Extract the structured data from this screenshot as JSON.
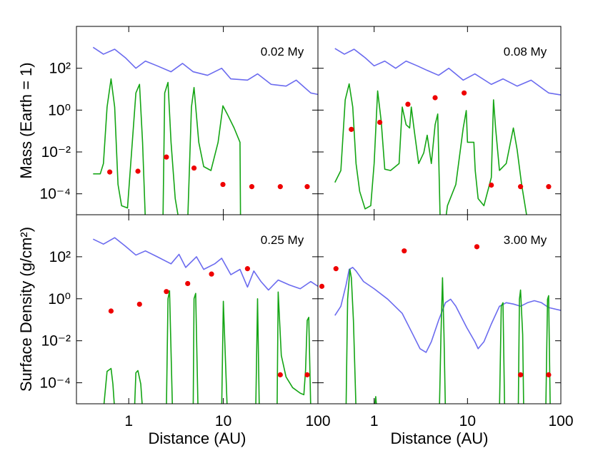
{
  "chart_data": [
    {
      "type": "line",
      "annotation": "0.02 My",
      "ylabel": "Mass (Earth = 1)",
      "log_x": true,
      "log_y": true,
      "xlim": [
        0.28,
        100
      ],
      "ylim": [
        1e-05,
        10000
      ],
      "xticks": [
        1,
        10,
        100
      ],
      "xticklabels": false,
      "yticklabels": true,
      "yticks": [
        {
          "value": 100,
          "label": "10²"
        },
        {
          "value": 1,
          "label": "10⁰"
        },
        {
          "value": 0.01,
          "label": "10⁻²"
        },
        {
          "value": 0.0001,
          "label": "10⁻⁴"
        }
      ],
      "series": [
        {
          "type": "line",
          "color": "#6b6bef",
          "x": [
            0.42,
            0.54,
            0.71,
            0.92,
            1.19,
            1.5,
            2.0,
            2.8,
            3.7,
            4.8,
            6.8,
            9.6,
            12,
            18,
            23,
            32,
            46,
            59,
            84,
            100
          ],
          "values": [
            1000,
            470,
            810,
            320,
            100,
            220,
            130,
            68,
            170,
            68,
            46,
            100,
            31,
            27,
            54,
            17,
            14,
            27,
            6.6,
            5.6
          ]
        },
        {
          "type": "line",
          "color": "#14a514",
          "x": [
            0.42,
            0.5,
            0.54,
            0.59,
            0.65,
            0.71,
            0.77,
            0.84,
            0.97,
            1.05,
            1.19,
            1.3,
            1.4,
            1.5,
            2.3,
            2.4,
            2.6,
            2.8,
            3.1,
            3.4,
            4.2,
            4.6,
            4.9,
            5.5,
            6.2,
            7.4,
            8.8,
            9.9,
            11,
            13,
            15,
            15.2
          ],
          "values": [
            0.0009,
            0.0009,
            0.0028,
            1.4,
            31,
            1.4,
            0.00028,
            2.7e-05,
            2.1e-05,
            0.0028,
            6.6,
            17,
            0.029,
            5e-06,
            5e-06,
            6.6,
            21,
            0.029,
            5.9e-05,
            5e-06,
            5e-06,
            1.4,
            12,
            0.029,
            0.002,
            0.0013,
            0.029,
            1.6,
            0.65,
            0.14,
            0.029,
            5e-06
          ]
        },
        {
          "type": "scatter",
          "color": "#ee0000",
          "x": [
            0.63,
            1.25,
            2.5,
            4.9,
            9.9,
            20,
            40,
            77
          ],
          "values": [
            0.0011,
            0.0012,
            0.0057,
            0.0017,
            0.00028,
            0.00022,
            0.00022,
            0.00022
          ]
        }
      ]
    },
    {
      "type": "line",
      "annotation": "0.08 My",
      "log_x": true,
      "log_y": true,
      "xlim": [
        0.25,
        100
      ],
      "ylim": [
        1e-05,
        10000
      ],
      "xticks": [
        1,
        10,
        100
      ],
      "xticklabels": false,
      "yticklabels": false,
      "yticks": [
        {
          "value": 100,
          "label": "10²"
        },
        {
          "value": 1,
          "label": "10⁰"
        },
        {
          "value": 0.01,
          "label": "10⁻²"
        },
        {
          "value": 0.0001,
          "label": "10⁻⁴"
        }
      ],
      "series": [
        {
          "type": "line",
          "color": "#6b6bef",
          "x": [
            0.38,
            0.48,
            0.61,
            0.8,
            1,
            1.3,
            1.7,
            2.2,
            2.9,
            3.7,
            4.9,
            6.3,
            9,
            12,
            18,
            24,
            34,
            48,
            74,
            100
          ],
          "values": [
            880,
            470,
            810,
            320,
            130,
            220,
            100,
            220,
            130,
            79,
            46,
            100,
            27,
            54,
            17,
            31,
            14,
            27,
            6.6,
            5.3
          ]
        },
        {
          "type": "line",
          "color": "#14a514",
          "x": [
            0.38,
            0.44,
            0.49,
            0.54,
            0.59,
            0.64,
            0.7,
            0.8,
            0.92,
            1,
            1.09,
            1.19,
            1.3,
            1.5,
            1.85,
            2.0,
            2.2,
            2.4,
            2.5,
            2.7,
            3.0,
            3.4,
            3.7,
            4.1,
            4.5,
            4.8,
            5.1,
            5.8,
            6.1,
            7.5,
            9,
            9.7,
            10,
            11.7,
            12.1,
            13,
            15,
            18,
            19,
            20,
            22,
            26,
            31,
            34,
            38,
            44
          ],
          "values": [
            0.00035,
            0.0013,
            3.1,
            18,
            1.4,
            0.0028,
            0.00013,
            1.9e-05,
            2.7e-05,
            0.0028,
            8.3,
            0.3,
            0.0015,
            0.0013,
            0.0028,
            1.4,
            0.2,
            0.14,
            1.4,
            0.093,
            0.0028,
            0.009,
            0.063,
            0.0028,
            0.2,
            0.65,
            5e-06,
            5e-06,
            2.7e-05,
            0.00028,
            0.14,
            0.95,
            0.029,
            0.029,
            0.0013,
            5.9e-05,
            2.7e-05,
            0.0006,
            3.1,
            0.14,
            0.0013,
            0.0028,
            0.14,
            0.013,
            0.00028,
            5e-06
          ]
        },
        {
          "type": "scatter",
          "color": "#ee0000",
          "x": [
            0.57,
            1.15,
            2.3,
            4.5,
            9.2,
            18,
            37,
            74
          ],
          "values": [
            0.12,
            0.26,
            1.9,
            3.9,
            6.6,
            0.00026,
            0.00022,
            0.00022
          ]
        }
      ]
    },
    {
      "type": "line",
      "annotation": "0.25 My",
      "ylabel": "Surface Density (g/cm²)",
      "xlabel": "Distance (AU)",
      "log_x": true,
      "log_y": true,
      "xlim": [
        0.28,
        100
      ],
      "ylim": [
        1e-05,
        10000
      ],
      "xticks": [
        1,
        10,
        100
      ],
      "xticklabels": true,
      "yticklabels": true,
      "yticks": [
        {
          "value": 100,
          "label": "10²"
        },
        {
          "value": 1,
          "label": "10⁰"
        },
        {
          "value": 0.01,
          "label": "10⁻²"
        },
        {
          "value": 0.0001,
          "label": "10⁻⁴"
        }
      ],
      "series": [
        {
          "type": "line",
          "color": "#6b6bef",
          "x": [
            0.42,
            0.54,
            0.71,
            0.92,
            1.19,
            1.5,
            2.0,
            2.8,
            3.4,
            4.0,
            5.2,
            6.2,
            8.1,
            9.6,
            12,
            15,
            18,
            21,
            25,
            30,
            38,
            50,
            65,
            84,
            100
          ],
          "values": [
            690,
            400,
            810,
            320,
            120,
            190,
            100,
            46,
            130,
            31,
            100,
            25,
            46,
            85,
            14,
            25,
            3.6,
            21,
            6.6,
            2.6,
            7.8,
            4.5,
            3.0,
            6.6,
            3.9
          ]
        },
        {
          "type": "line",
          "color": "#14a514",
          "x": [
            0.54,
            0.59,
            0.65,
            0.68,
            0.71,
            1.15,
            1.19,
            1.25,
            1.34,
            1.4,
            2.5,
            2.6,
            2.7,
            2.9,
            4.8,
            4.9,
            5.1,
            5.4,
            9.6,
            10,
            11,
            22,
            23,
            24,
            37,
            38,
            41,
            46,
            54,
            65,
            71,
            74,
            77,
            80,
            84
          ],
          "values": [
            5e-06,
            0.00035,
            0.00048,
            8.7e-05,
            5e-06,
            5e-06,
            0.0003,
            0.00038,
            8.7e-05,
            5e-06,
            5e-06,
            1.0,
            2.4,
            5e-06,
            5e-06,
            1.0,
            1.8,
            5e-06,
            5e-06,
            0.76,
            5e-06,
            5e-06,
            1.0,
            5e-06,
            5e-06,
            2.1,
            0.002,
            0.00019,
            5.9e-05,
            3.2e-05,
            2.7e-05,
            0.00041,
            0.093,
            0.13,
            5e-06
          ]
        },
        {
          "type": "scatter",
          "color": "#ee0000",
          "x": [
            0.65,
            1.3,
            2.5,
            4.2,
            7.5,
            18,
            40,
            77,
            110
          ],
          "values": [
            0.26,
            0.55,
            2.2,
            5.3,
            15,
            27,
            0.00024,
            0.00024,
            3.9
          ]
        }
      ]
    },
    {
      "type": "line",
      "annotation": "3.00 My",
      "xlabel": "Distance (AU)",
      "log_x": true,
      "log_y": true,
      "xlim": [
        0.25,
        100
      ],
      "ylim": [
        1e-05,
        10000
      ],
      "xticks": [
        1,
        10,
        100
      ],
      "xticklabels": true,
      "yticklabels": false,
      "yticks": [
        {
          "value": 100,
          "label": "10²"
        },
        {
          "value": 1,
          "label": "10⁰"
        },
        {
          "value": 0.01,
          "label": "10⁻²"
        },
        {
          "value": 0.0001,
          "label": "10⁻⁴"
        }
      ],
      "series": [
        {
          "type": "line",
          "color": "#6b6bef",
          "x": [
            0.38,
            0.44,
            0.5,
            0.54,
            0.59,
            0.64,
            0.77,
            1,
            1.4,
            2.0,
            2.6,
            3.1,
            3.6,
            4.1,
            4.9,
            5.8,
            6.6,
            7.5,
            9.8,
            12,
            13,
            15,
            18,
            22,
            26,
            31,
            37,
            44,
            52,
            62,
            74,
            100
          ],
          "values": [
            0.16,
            0.44,
            4.5,
            25,
            31,
            21,
            6.6,
            3.0,
            0.95,
            0.2,
            0.02,
            0.0042,
            0.0028,
            0.009,
            0.093,
            0.65,
            0.95,
            0.44,
            0.043,
            0.009,
            0.0042,
            0.009,
            0.063,
            0.44,
            0.65,
            0.56,
            0.44,
            0.65,
            0.81,
            0.65,
            0.38,
            0.28
          ]
        },
        {
          "type": "line",
          "color": "#14a514",
          "x": [
            0.5,
            0.52,
            0.55,
            0.57,
            0.6,
            0.64,
            1.0,
            1.04,
            1.07,
            5.0,
            5.2,
            5.4,
            5.6,
            5.8,
            22,
            23,
            24,
            25,
            35,
            36,
            37,
            39,
            40,
            69,
            72,
            74,
            77
          ],
          "values": [
            5e-06,
            0.95,
            25,
            10,
            0.093,
            5e-06,
            5e-06,
            2.2e-05,
            5e-06,
            5e-06,
            0.02,
            10,
            0.02,
            5e-06,
            5e-06,
            0.44,
            0.65,
            5e-06,
            5e-06,
            0.95,
            2.6,
            0.02,
            5e-06,
            5e-06,
            0.95,
            1.4,
            5e-06
          ]
        },
        {
          "type": "scatter",
          "color": "#ee0000",
          "x": [
            0.39,
            2.1,
            12.6,
            37,
            74
          ],
          "values": [
            27,
            190,
            300,
            0.00024,
            0.00024
          ]
        }
      ]
    }
  ]
}
